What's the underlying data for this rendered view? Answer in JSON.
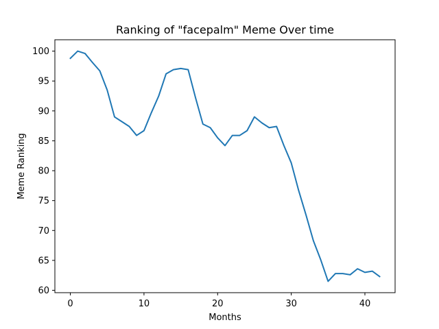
{
  "chart_data": {
    "type": "line",
    "title": "Ranking of \"facepalm\" Meme Over time",
    "xlabel": "Months",
    "ylabel": "Meme Ranking",
    "xlim": [
      -2.1,
      44.1
    ],
    "ylim": [
      59.6,
      101.9
    ],
    "x_ticks": [
      0,
      10,
      20,
      30,
      40
    ],
    "y_ticks": [
      60,
      65,
      70,
      75,
      80,
      85,
      90,
      95,
      100
    ],
    "grid": false,
    "legend": "none",
    "series": [
      {
        "color": "#1f77b4",
        "x": [
          0,
          1,
          2,
          3,
          4,
          5,
          6,
          7,
          8,
          9,
          10,
          11,
          12,
          13,
          14,
          15,
          16,
          17,
          18,
          19,
          20,
          21,
          22,
          23,
          24,
          25,
          26,
          27,
          28,
          29,
          30,
          31,
          32,
          33,
          34,
          35,
          36,
          37,
          38,
          39,
          40,
          41,
          42
        ],
        "values": [
          98.8,
          100.0,
          99.6,
          98.1,
          96.7,
          93.5,
          89.0,
          88.2,
          87.4,
          85.9,
          86.7,
          89.7,
          92.5,
          96.2,
          96.9,
          97.1,
          96.9,
          92.2,
          87.8,
          87.2,
          85.5,
          84.2,
          85.9,
          85.9,
          86.7,
          89.0,
          88.0,
          87.2,
          87.4,
          84.2,
          81.3,
          76.7,
          72.6,
          68.3,
          65.1,
          61.5,
          62.8,
          62.8,
          62.6,
          63.6,
          63.0,
          63.2,
          62.3
        ]
      }
    ]
  }
}
